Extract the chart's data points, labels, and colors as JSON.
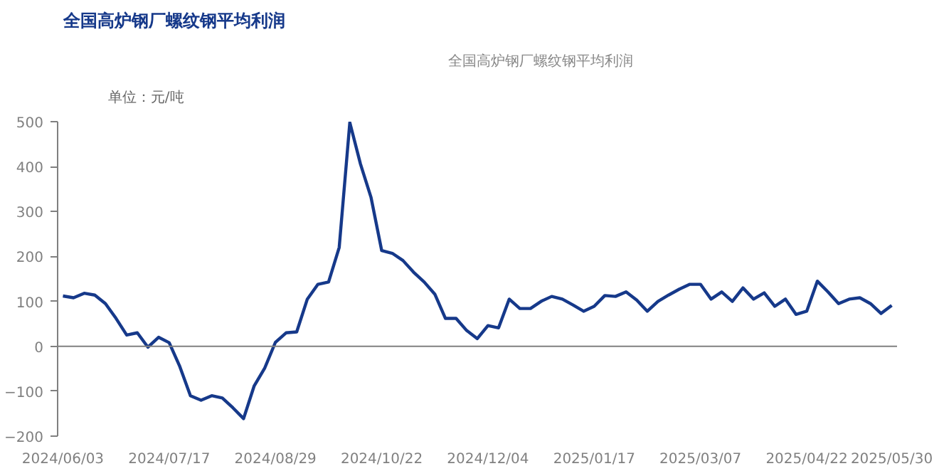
{
  "chart_data": {
    "type": "line",
    "title": "全国高炉钢厂螺纹钢平均利润",
    "ylabel": "单位：元/吨",
    "categories": [
      "2024/06/03",
      null,
      null,
      null,
      null,
      null,
      null,
      null,
      null,
      null,
      "2024/07/17",
      null,
      null,
      null,
      null,
      null,
      null,
      null,
      null,
      null,
      "2024/08/29",
      null,
      null,
      null,
      null,
      null,
      null,
      null,
      null,
      null,
      "2024/10/22",
      null,
      null,
      null,
      null,
      null,
      null,
      null,
      null,
      null,
      "2024/12/04",
      null,
      null,
      null,
      null,
      null,
      null,
      null,
      null,
      null,
      "2025/01/17",
      null,
      null,
      null,
      null,
      null,
      null,
      null,
      null,
      null,
      "2025/03/07",
      null,
      null,
      null,
      null,
      null,
      null,
      null,
      null,
      null,
      "2025/04/22",
      null,
      null,
      null,
      null,
      null,
      null,
      null,
      "2025/05/30"
    ],
    "series": [
      {
        "name": "全国高炉钢厂螺纹钢平均利润",
        "color": "#16398a",
        "values": [
          112,
          108,
          118,
          114,
          95,
          62,
          25,
          30,
          -2,
          20,
          8,
          -45,
          -110,
          -120,
          -110,
          -115,
          -137,
          -161,
          -88,
          -48,
          9,
          30,
          32,
          105,
          138,
          143,
          220,
          498,
          406,
          331,
          213,
          207,
          191,
          165,
          143,
          116,
          62,
          62,
          35,
          17,
          46,
          41,
          105,
          84,
          84,
          100,
          111,
          105,
          92,
          78,
          89,
          113,
          111,
          121,
          103,
          78,
          100,
          114,
          127,
          138,
          138,
          105,
          121,
          100,
          130,
          105,
          119,
          89,
          105,
          71,
          78,
          145,
          121,
          95,
          105,
          108,
          95,
          73,
          91
        ]
      }
    ],
    "ylim": [
      -200,
      500
    ],
    "yticks": [
      -200,
      -100,
      0,
      100,
      200,
      300,
      400,
      500
    ],
    "ref_lines": [
      {
        "axis": "y",
        "value": 0,
        "color": "#808080"
      }
    ],
    "grid": false,
    "legend": "top",
    "marker": "none",
    "line_style": "solid"
  }
}
